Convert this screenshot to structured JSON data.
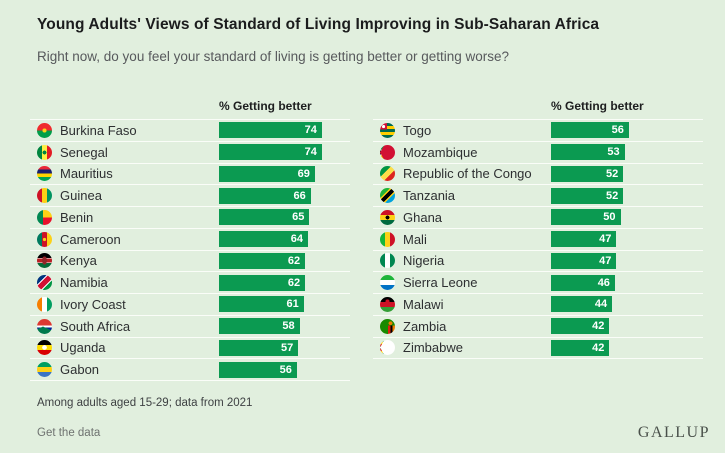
{
  "page": {
    "background": "#e1efde",
    "bar_color": "#0b9a51"
  },
  "header": {
    "title": "Young Adults' Views of Standard of Living Improving in Sub-Saharan Africa",
    "subtitle": "Right now, do you feel your standard of living is getting better or getting worse?"
  },
  "columns": [
    {
      "header": "% Getting better",
      "rows": [
        {
          "country": "Burkina Faso",
          "value": 74,
          "flag_css": "radial-gradient(circle at 50% 50%, #fcd116 0 2px, transparent 2.2px), linear-gradient(to bottom, #ef2b2d 50%, #009e49 50%)"
        },
        {
          "country": "Senegal",
          "value": 74,
          "flag_css": "radial-gradient(circle at 50% 50%, #00853f 0 1.8px, transparent 2px), linear-gradient(to right, #00853f 33%, #fdef42 33% 66%, #e31b23 66%)"
        },
        {
          "country": "Mauritius",
          "value": 69,
          "flag_css": "linear-gradient(to bottom, #ea2839 25%, #1a206d 25% 50%, #ffd500 50% 75%, #00a551 75%)"
        },
        {
          "country": "Guinea",
          "value": 66,
          "flag_css": "linear-gradient(to right, #ce1126 33%, #fcd116 33% 66%, #009460 66%)"
        },
        {
          "country": "Benin",
          "value": 65,
          "flag_css": "linear-gradient(to right, #008751 0 40%, transparent 40%), linear-gradient(to bottom, #fcd116 50%, #e8112d 50%)"
        },
        {
          "country": "Cameroon",
          "value": 64,
          "flag_css": "radial-gradient(circle at 50% 50%, #fcd116 0 1.6px, transparent 1.8px), linear-gradient(to right, #007a5e 33%, #ce1126 33% 66%, #fcd116 66%)"
        },
        {
          "country": "Kenya",
          "value": 62,
          "flag_css": "radial-gradient(ellipse 2.5px 4px at 50% 50%, #922529 0 100%, transparent 100%), linear-gradient(to bottom, #000 32%, #fff 32% 38%, #b82025 38% 62%, #fff 62% 68%, #046a38 68%)"
        },
        {
          "country": "Namibia",
          "value": 62,
          "flag_css": "linear-gradient(135deg, #003580 32%, #fff 32% 38%, #d21034 38% 62%, #fff 62% 68%, #009543 68%)"
        },
        {
          "country": "Ivory Coast",
          "value": 61,
          "flag_css": "linear-gradient(to right, #f77f00 33%, #fff 33% 66%, #009e60 66%)"
        },
        {
          "country": "South Africa",
          "value": 58,
          "flag_css": "conic-gradient(from 115deg at 40% 50%, #007a4d 0 130deg, transparent 130deg), linear-gradient(to bottom, #de3831 44%, #fff 44% 56%, #002395 56%)"
        },
        {
          "country": "Uganda",
          "value": 57,
          "flag_css": "radial-gradient(circle at 50% 50%, #fff 0 2.2px, transparent 2.4px), linear-gradient(to bottom, #000 33%, #fcdc04 33% 66%, #d90000 66%)"
        },
        {
          "country": "Gabon",
          "value": 56,
          "flag_css": "linear-gradient(to bottom, #009e60 33%, #fcd116 33% 66%, #3a75c4 66%)"
        }
      ]
    },
    {
      "header": "% Getting better",
      "rows": [
        {
          "country": "Togo",
          "value": 56,
          "flag_css": "radial-gradient(circle at 24% 24%, #fff 0 1.5px, transparent 1.7px), conic-gradient(from 270deg at 46% 44%, #d21034 0 90deg, transparent 90deg), linear-gradient(to bottom, #006a4e 20%, #ffce00 20% 40%, #006a4e 40% 60%, #ffce00 60% 80%, #006a4e 80%)"
        },
        {
          "country": "Mozambique",
          "value": 53,
          "flag_css": "conic-gradient(from 30deg at 0% 50%, #d21034 0 120deg, transparent 120deg), linear-gradient(to bottom, #009a44 30%, #fff 30% 37%, #000 37% 63%, #fff 63% 70%, #ffca00 70%)"
        },
        {
          "country": "Republic of the Congo",
          "value": 52,
          "flag_css": "linear-gradient(135deg, #009543 38%, #fbde4a 38% 62%, #dc241f 62%)"
        },
        {
          "country": "Tanzania",
          "value": 52,
          "flag_css": "linear-gradient(135deg, #1eb53a 34%, #fcd116 34% 41%, #000 41% 59%, #fcd116 59% 66%, #00a3dd 66%)"
        },
        {
          "country": "Ghana",
          "value": 50,
          "flag_css": "radial-gradient(circle at 50% 50%, #000 0 1.8px, transparent 2px), linear-gradient(to bottom, #ce1126 33%, #fcd116 33% 66%, #006b3f 66%)"
        },
        {
          "country": "Mali",
          "value": 47,
          "flag_css": "linear-gradient(to right, #14b53a 33%, #fcd116 33% 66%, #ce1126 66%)"
        },
        {
          "country": "Nigeria",
          "value": 47,
          "flag_css": "linear-gradient(to right, #008751 33%, #fff 33% 66%, #008751 66%)"
        },
        {
          "country": "Sierra Leone",
          "value": 46,
          "flag_css": "linear-gradient(to bottom, #1eb53a 33%, #fff 33% 66%, #0072c6 66%)"
        },
        {
          "country": "Malawi",
          "value": 44,
          "flag_css": "radial-gradient(circle at 50% 30%, #ce1126 0 2px, transparent 2.2px), linear-gradient(to bottom, #000 33%, #ce1126 33% 66%, #339e35 66%)"
        },
        {
          "country": "Zambia",
          "value": 42,
          "flag_css": "radial-gradient(circle at 70% 28%, #ef7d00 0 1.8px, transparent 2px), linear-gradient(to bottom, #198a00 0 45%, transparent 45%), linear-gradient(to right, #198a00 55%, #de2010 55% 70%, #000 70% 85%, #ef7d00 85%)"
        },
        {
          "country": "Zimbabwe",
          "value": 42,
          "flag_css": "conic-gradient(from 30deg at 0% 50%, #fff 0 120deg, transparent 120deg), linear-gradient(to bottom, #319e45 14%, #ffd200 14% 28%, #de2010 28% 42%, #000 42% 58%, #de2010 58% 72%, #ffd200 72% 86%, #319e45 86%)"
        }
      ]
    }
  ],
  "footer": {
    "note": "Among adults aged 15-29; data from 2021",
    "link": "Get the data",
    "logo": "GALLUP"
  },
  "chart_data": {
    "type": "bar",
    "title": "Young Adults' Views of Standard of Living Improving in Sub-Saharan Africa",
    "subtitle": "Right now, do you feel your standard of living is getting better or getting worse?",
    "value_label": "% Getting better",
    "categories": [
      "Burkina Faso",
      "Senegal",
      "Mauritius",
      "Guinea",
      "Benin",
      "Cameroon",
      "Kenya",
      "Namibia",
      "Ivory Coast",
      "South Africa",
      "Uganda",
      "Gabon",
      "Togo",
      "Mozambique",
      "Republic of the Congo",
      "Tanzania",
      "Ghana",
      "Mali",
      "Nigeria",
      "Sierra Leone",
      "Malawi",
      "Zambia",
      "Zimbabwe"
    ],
    "values": [
      74,
      74,
      69,
      66,
      65,
      64,
      62,
      62,
      61,
      58,
      57,
      56,
      56,
      53,
      52,
      52,
      50,
      47,
      47,
      46,
      44,
      42,
      42
    ],
    "xlim": [
      0,
      100
    ],
    "orientation": "horizontal",
    "bar_color": "#0b9a51",
    "note": "Among adults aged 15-29; data from 2021",
    "brand": "GALLUP"
  }
}
